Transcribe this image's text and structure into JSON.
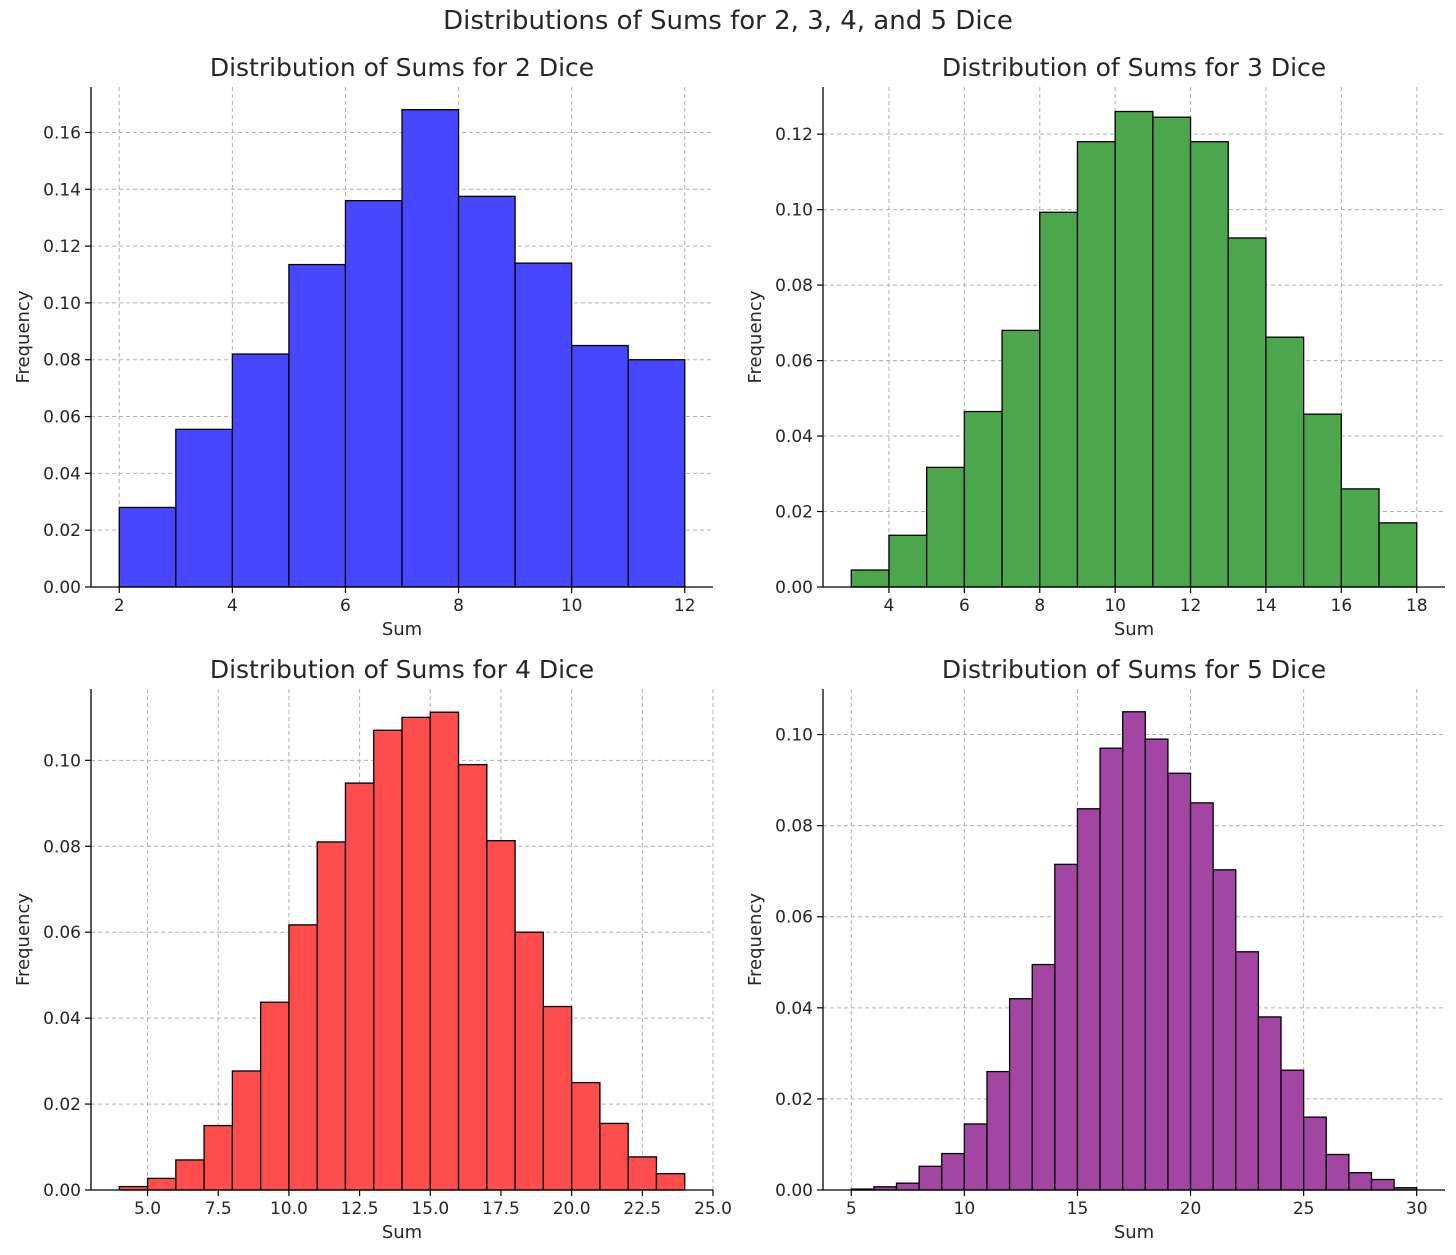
{
  "suptitle": "Distributions of Sums for 2, 3, 4, and 5 Dice",
  "style": {
    "edge_color": "#000000",
    "grid_color": "#b0b0b0"
  },
  "chart_data": [
    {
      "type": "bar",
      "title": "Distribution of Sums for 2 Dice",
      "xlabel": "Sum",
      "ylabel": "Frequency",
      "color": "#4747ff",
      "xlim": [
        1.5,
        12.5
      ],
      "ylim": [
        0,
        0.176
      ],
      "xticks": [
        2,
        4,
        6,
        8,
        10,
        12
      ],
      "xticklabels": [
        "2",
        "4",
        "6",
        "8",
        "10",
        "12"
      ],
      "yticks": [
        0,
        0.02,
        0.04,
        0.06,
        0.08,
        0.1,
        0.12,
        0.14,
        0.16
      ],
      "yticklabels": [
        "0.00",
        "0.02",
        "0.04",
        "0.06",
        "0.08",
        "0.10",
        "0.12",
        "0.14",
        "0.16"
      ],
      "grid": true,
      "bin_edges": [
        2,
        3,
        4,
        5,
        6,
        7,
        8,
        9,
        10,
        11,
        12
      ],
      "values": [
        0.028,
        0.0555,
        0.082,
        0.1135,
        0.136,
        0.168,
        0.1375,
        0.114,
        0.085,
        0.08
      ]
    },
    {
      "type": "bar",
      "title": "Distribution of Sums for 3 Dice",
      "xlabel": "Sum",
      "ylabel": "Frequency",
      "color": "#4ca64c",
      "xlim": [
        2.25,
        18.75
      ],
      "ylim": [
        0,
        0.1325
      ],
      "xticks": [
        4,
        6,
        8,
        10,
        12,
        14,
        16,
        18
      ],
      "xticklabels": [
        "4",
        "6",
        "8",
        "10",
        "12",
        "14",
        "16",
        "18"
      ],
      "yticks": [
        0,
        0.02,
        0.04,
        0.06,
        0.08,
        0.1,
        0.12
      ],
      "yticklabels": [
        "0.00",
        "0.02",
        "0.04",
        "0.06",
        "0.08",
        "0.10",
        "0.12"
      ],
      "grid": true,
      "bin_edges": [
        3,
        4,
        5,
        6,
        7,
        8,
        9,
        10,
        11,
        12,
        13,
        14,
        15,
        16,
        17,
        18
      ],
      "values": [
        0.0045,
        0.0137,
        0.0317,
        0.0465,
        0.068,
        0.0993,
        0.118,
        0.126,
        0.1245,
        0.118,
        0.0925,
        0.0662,
        0.0458,
        0.026,
        0.017
      ]
    },
    {
      "type": "bar",
      "title": "Distribution of Sums for 4 Dice",
      "xlabel": "Sum",
      "ylabel": "Frequency",
      "color": "#ff4c4c",
      "xlim": [
        3,
        25
      ],
      "ylim": [
        0,
        0.1166
      ],
      "xticks": [
        5,
        7.5,
        10,
        12.5,
        15,
        17.5,
        20,
        22.5,
        25
      ],
      "xticklabels": [
        "5.0",
        "7.5",
        "10.0",
        "12.5",
        "15.0",
        "17.5",
        "20.0",
        "22.5",
        "25.0"
      ],
      "yticks": [
        0,
        0.02,
        0.04,
        0.06,
        0.08,
        0.1
      ],
      "yticklabels": [
        "0.00",
        "0.02",
        "0.04",
        "0.06",
        "0.08",
        "0.10"
      ],
      "grid": true,
      "bin_edges": [
        4,
        5,
        6,
        7,
        8,
        9,
        10,
        11,
        12,
        13,
        14,
        15,
        16,
        17,
        18,
        19,
        20,
        21,
        22,
        23,
        24
      ],
      "values": [
        0.0008,
        0.0027,
        0.007,
        0.015,
        0.0277,
        0.0437,
        0.0617,
        0.081,
        0.0947,
        0.107,
        0.11,
        0.1112,
        0.099,
        0.0813,
        0.06,
        0.0427,
        0.025,
        0.0155,
        0.0077,
        0.0038
      ]
    },
    {
      "type": "bar",
      "title": "Distribution of Sums for 5 Dice",
      "xlabel": "Sum",
      "ylabel": "Frequency",
      "color": "#a346a3",
      "xlim": [
        3.75,
        31.25
      ],
      "ylim": [
        0,
        0.11
      ],
      "xticks": [
        5,
        10,
        15,
        20,
        25,
        30
      ],
      "xticklabels": [
        "5",
        "10",
        "15",
        "20",
        "25",
        "30"
      ],
      "yticks": [
        0,
        0.02,
        0.04,
        0.06,
        0.08,
        0.1
      ],
      "yticklabels": [
        "0.00",
        "0.02",
        "0.04",
        "0.06",
        "0.08",
        "0.10"
      ],
      "grid": true,
      "bin_edges": [
        5,
        6,
        7,
        8,
        9,
        10,
        11,
        12,
        13,
        14,
        15,
        16,
        17,
        18,
        19,
        20,
        21,
        22,
        23,
        24,
        25,
        26,
        27,
        28,
        29,
        30
      ],
      "values": [
        0.0002,
        0.0007,
        0.0015,
        0.0052,
        0.008,
        0.0145,
        0.026,
        0.042,
        0.0495,
        0.0715,
        0.0837,
        0.097,
        0.105,
        0.099,
        0.0915,
        0.085,
        0.0703,
        0.0523,
        0.038,
        0.0263,
        0.016,
        0.0078,
        0.0038,
        0.0023,
        0.0005
      ]
    }
  ]
}
